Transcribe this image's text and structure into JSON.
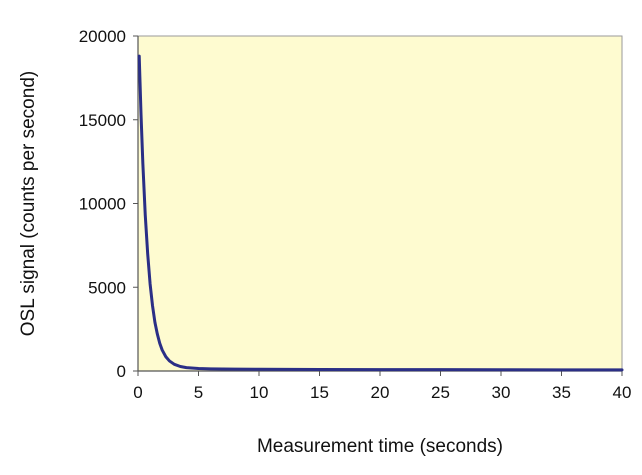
{
  "chart_data": {
    "type": "line",
    "title": "",
    "xlabel": "Measurement time (seconds)",
    "ylabel": "OSL signal (counts per second)",
    "xlim": [
      0,
      40
    ],
    "ylim": [
      0,
      20000
    ],
    "x_ticks": [
      0,
      5,
      10,
      15,
      20,
      25,
      30,
      35,
      40
    ],
    "y_ticks": [
      0,
      5000,
      10000,
      15000,
      20000
    ],
    "x_tick_labels": [
      "0",
      "5",
      "10",
      "15",
      "20",
      "25",
      "30",
      "35",
      "40"
    ],
    "y_tick_labels": [
      "0",
      "5000",
      "10000",
      "15000",
      "20000"
    ],
    "grid": false,
    "legend": "none",
    "plot_background": "#fefbd0",
    "line_color": "#2b2f86",
    "series": [
      {
        "x": [
          0.1,
          0.25,
          0.4,
          0.6,
          0.8,
          1.0,
          1.2,
          1.4,
          1.6,
          1.8,
          2.0,
          2.3,
          2.6,
          3.0,
          3.5,
          4.0,
          5.0,
          6.0,
          8.0,
          10.0,
          15.0,
          20.0,
          25.0,
          30.0,
          35.0,
          40.0
        ],
        "y": [
          18800,
          15300,
          12400,
          9300,
          7000,
          5200,
          3900,
          2900,
          2200,
          1650,
          1250,
          850,
          600,
          400,
          270,
          200,
          150,
          130,
          115,
          105,
          90,
          85,
          80,
          75,
          70,
          70
        ]
      }
    ]
  }
}
